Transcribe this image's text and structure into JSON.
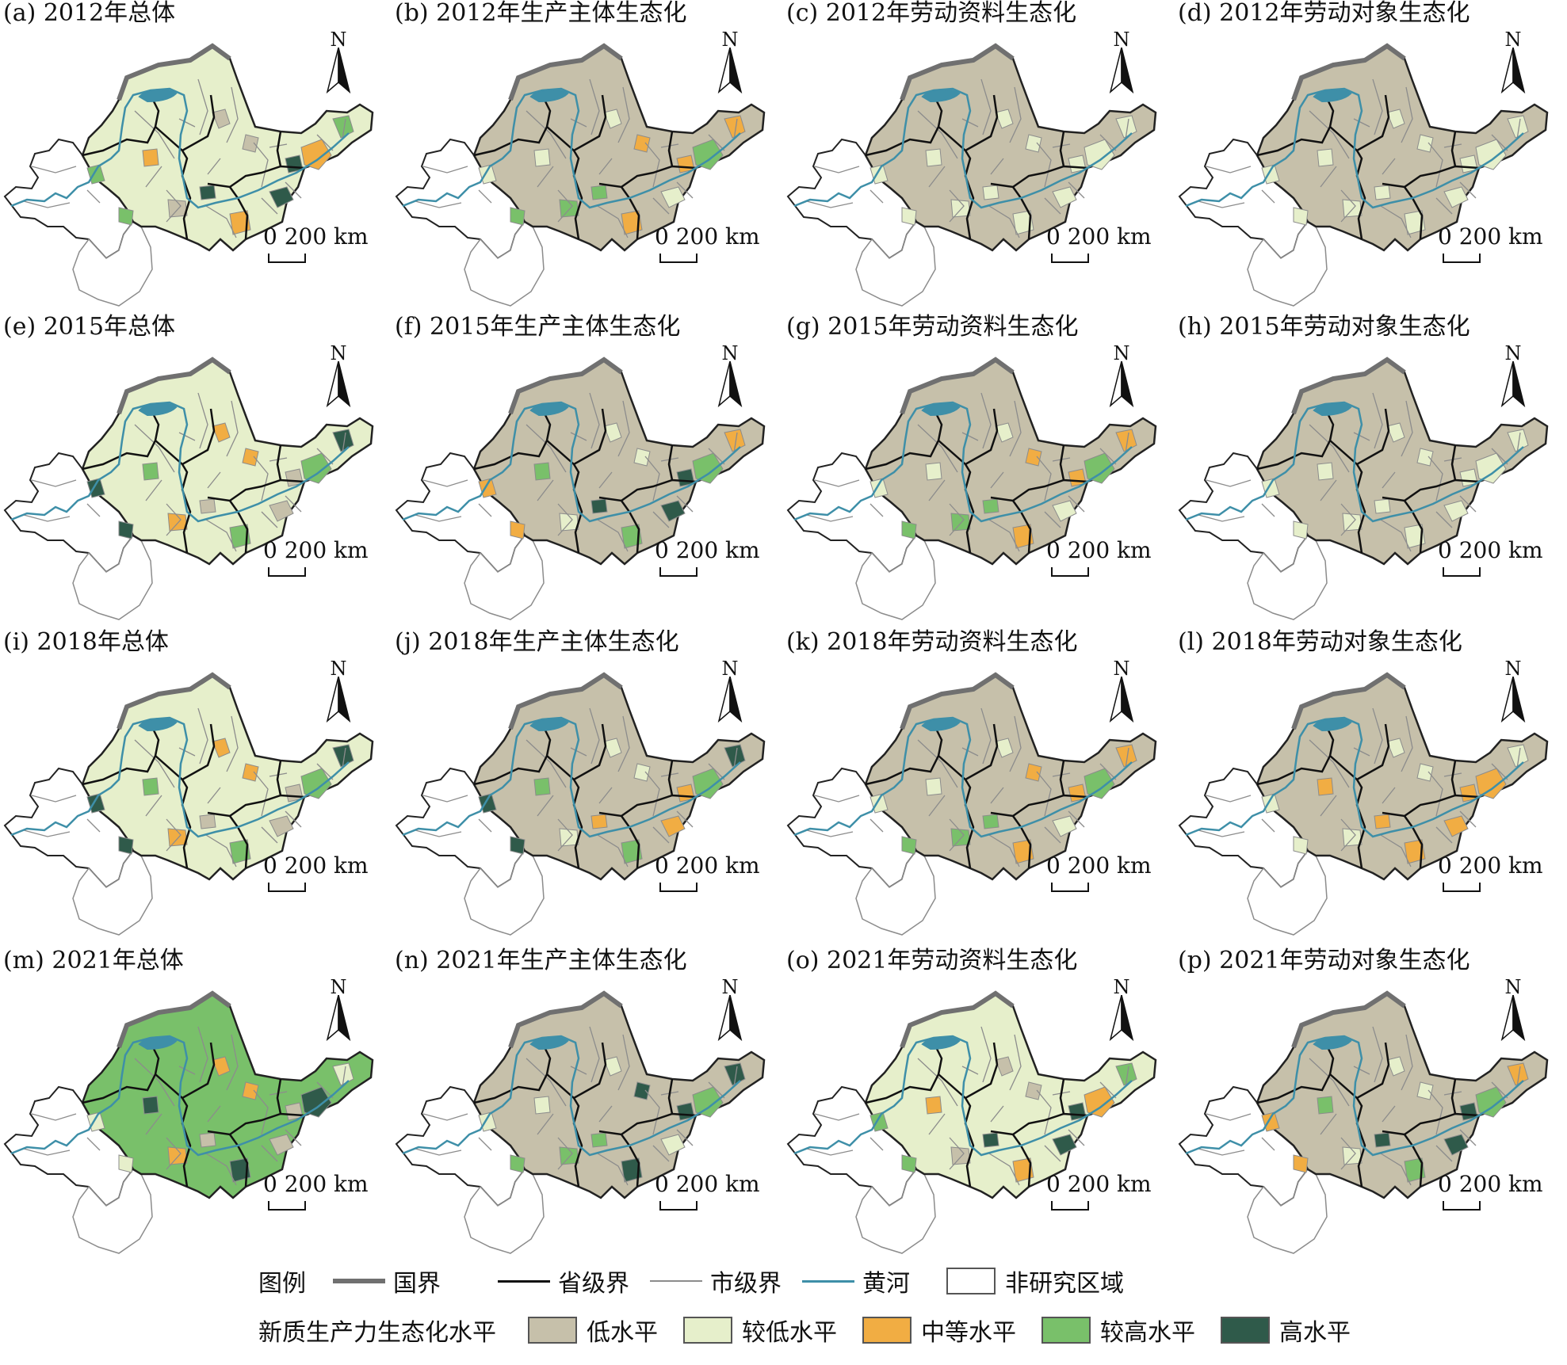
{
  "colors": {
    "low": "#c6c0aa",
    "lower": "#e6efcb",
    "medium": "#f1ad43",
    "higher": "#79c06a",
    "high": "#2f5a4a",
    "non_study": "#ffffff",
    "national_border": "#707070",
    "provincial_border": "#111111",
    "city_border": "#8c8c8c",
    "yellow_river": "#3e8fa8"
  },
  "map": {
    "north_label": "N",
    "scale_label": "0 200 km"
  },
  "panels": [
    {
      "title": "(a) 2012年总体",
      "fill": "lower",
      "accents": [
        "low",
        "medium",
        "higher",
        "high"
      ]
    },
    {
      "title": "(b) 2012年生产主体生态化",
      "fill": "low",
      "accents": [
        "lower",
        "higher",
        "medium"
      ]
    },
    {
      "title": "(c) 2012年劳动资料生态化",
      "fill": "low",
      "accents": [
        "lower"
      ]
    },
    {
      "title": "(d) 2012年劳动对象生态化",
      "fill": "low",
      "accents": [
        "lower"
      ]
    },
    {
      "title": "(e) 2015年总体",
      "fill": "lower",
      "accents": [
        "medium",
        "higher",
        "high",
        "low"
      ]
    },
    {
      "title": "(f) 2015年生产主体生态化",
      "fill": "low",
      "accents": [
        "lower",
        "higher",
        "medium",
        "high"
      ]
    },
    {
      "title": "(g) 2015年劳动资料生态化",
      "fill": "low",
      "accents": [
        "lower",
        "higher",
        "medium"
      ]
    },
    {
      "title": "(h) 2015年劳动对象生态化",
      "fill": "low",
      "accents": [
        "lower"
      ]
    },
    {
      "title": "(i) 2018年总体",
      "fill": "lower",
      "accents": [
        "medium",
        "higher",
        "high",
        "low"
      ]
    },
    {
      "title": "(j) 2018年生产主体生态化",
      "fill": "low",
      "accents": [
        "lower",
        "higher",
        "high",
        "medium"
      ]
    },
    {
      "title": "(k) 2018年劳动资料生态化",
      "fill": "low",
      "accents": [
        "lower",
        "higher",
        "medium"
      ]
    },
    {
      "title": "(l) 2018年劳动对象生态化",
      "fill": "low",
      "accents": [
        "lower",
        "medium"
      ]
    },
    {
      "title": "(m) 2021年总体",
      "fill": "higher",
      "accents": [
        "medium",
        "high",
        "lower",
        "low"
      ]
    },
    {
      "title": "(n) 2021年生产主体生态化",
      "fill": "low",
      "accents": [
        "lower",
        "higher",
        "high"
      ]
    },
    {
      "title": "(o) 2021年劳动资料生态化",
      "fill": "lower",
      "accents": [
        "low",
        "medium",
        "higher",
        "high"
      ]
    },
    {
      "title": "(p) 2021年劳动对象生态化",
      "fill": "low",
      "accents": [
        "lower",
        "higher",
        "medium",
        "high"
      ]
    }
  ],
  "legend": {
    "title": "图例",
    "national_border": "国界",
    "provincial_border": "省级界",
    "city_border": "市级界",
    "yellow_river": "黄河",
    "non_study": "非研究区域",
    "level_title": "新质生产力生态化水平",
    "levels": [
      "低水平",
      "较低水平",
      "中等水平",
      "较高水平",
      "高水平"
    ]
  }
}
